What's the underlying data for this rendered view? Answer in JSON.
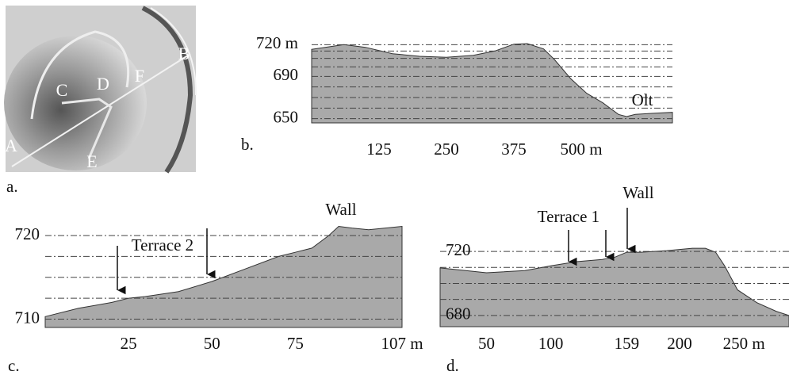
{
  "map": {
    "panel_label": "a.",
    "labels": [
      "A",
      "B",
      "C",
      "D",
      "E",
      "F"
    ]
  },
  "chart_data": [
    {
      "type": "area",
      "panel_label": "b.",
      "color": "#a9a9a9",
      "x": [
        0,
        20,
        60,
        100,
        150,
        200,
        250,
        300,
        340,
        375,
        400,
        430,
        450,
        480,
        510,
        540,
        569,
        584,
        600,
        630,
        669
      ],
      "values": [
        715.5,
        717,
        720,
        717.5,
        711.5,
        709,
        708,
        710,
        714,
        720.5,
        721,
        716,
        706,
        688,
        674,
        665,
        654,
        652,
        654,
        655,
        656
      ],
      "xlim": [
        0,
        669
      ],
      "ylim": [
        646,
        724
      ],
      "xticks": [
        125,
        250,
        375,
        {
          "value": 500,
          "label": "500 m"
        }
      ],
      "yticks": [
        {
          "value": 720,
          "label": "720 m"
        },
        690,
        650
      ],
      "gridlines": [
        720,
        714,
        707,
        699,
        690,
        680,
        670,
        660,
        650
      ],
      "annotations": [
        "Olt"
      ]
    },
    {
      "type": "area",
      "panel_label": "c.",
      "color": "#a9a9a9",
      "x": [
        0,
        10,
        20,
        25,
        30,
        40,
        50,
        60,
        70,
        75,
        80,
        85,
        88,
        92,
        97,
        102,
        107
      ],
      "values": [
        710.3,
        711.3,
        712,
        712.5,
        712.7,
        713.3,
        714.5,
        716,
        717.5,
        718,
        718.5,
        720,
        721.1,
        720.9,
        720.7,
        720.9,
        721.1
      ],
      "xlim": [
        0,
        107
      ],
      "ylim": [
        709,
        722
      ],
      "xticks": [
        25,
        50,
        75,
        {
          "value": 107,
          "label": "107 m"
        }
      ],
      "yticks": [
        720,
        710
      ],
      "gridlines": [
        720,
        717.5,
        715,
        712.5,
        710
      ],
      "annotations": [
        "Terrace 2",
        "Wall"
      ]
    },
    {
      "type": "area",
      "panel_label": "d.",
      "color": "#a9a9a9",
      "x": [
        14,
        50,
        80,
        100,
        120,
        140,
        150,
        159,
        170,
        190,
        210,
        220,
        228,
        235,
        245,
        260,
        275,
        285
      ],
      "values": [
        709.7,
        706.7,
        708,
        711,
        713.6,
        715,
        716.5,
        719.5,
        719.5,
        720.5,
        722,
        722,
        719.5,
        711,
        696,
        688,
        682.6,
        680
      ],
      "xlim": [
        14,
        285
      ],
      "ylim": [
        673,
        726
      ],
      "xticks": [
        50,
        100,
        159,
        200,
        {
          "value": 250,
          "label": "250 m"
        }
      ],
      "yticks": [
        720,
        680
      ],
      "gridlines": [
        720,
        710,
        700,
        690,
        680
      ],
      "annotations": [
        "Terrace 1",
        "Wall"
      ]
    }
  ]
}
